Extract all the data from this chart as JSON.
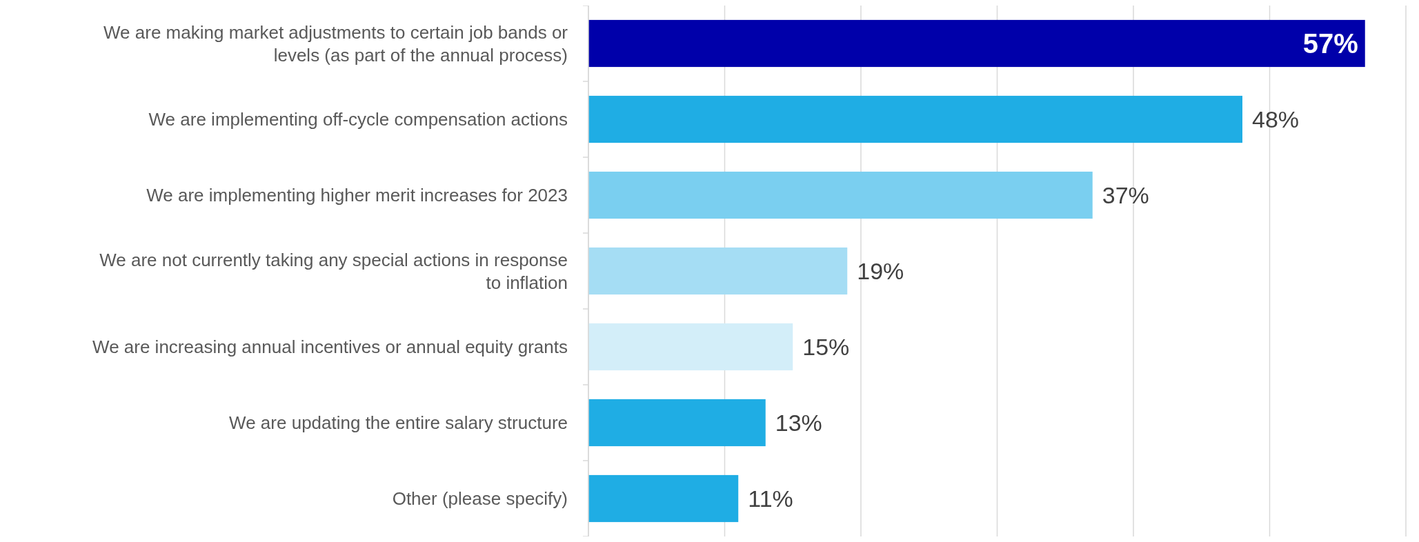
{
  "chart_data": {
    "type": "bar",
    "orientation": "horizontal",
    "categories": [
      "We are making market adjustments to certain job bands or levels (as part of the annual process)",
      "We are implementing off-cycle compensation actions",
      "We are implementing higher merit increases for 2023",
      "We are not currently taking any special actions in response to inflation",
      "We are increasing annual incentives or annual equity grants",
      "We are updating the entire salary structure",
      "Other (please specify)"
    ],
    "values": [
      57,
      48,
      37,
      19,
      15,
      13,
      11
    ],
    "colors": [
      "#0000aa",
      "#1fade4",
      "#7acff0",
      "#a5ddf4",
      "#d3eef9",
      "#1fade4",
      "#1fade4"
    ],
    "value_labels": [
      "57%",
      "48%",
      "37%",
      "19%",
      "15%",
      "13%",
      "11%"
    ],
    "xlim": [
      0,
      60
    ],
    "xticks": [
      {
        "value": 0,
        "label": null
      },
      {
        "value": 10,
        "label": null
      },
      {
        "value": 20,
        "label": null
      },
      {
        "value": 30,
        "label": null
      },
      {
        "value": 40,
        "label": null
      },
      {
        "value": 50,
        "label": null
      },
      {
        "value": 60,
        "label": null
      }
    ],
    "grid": "x",
    "tick_labels": "y"
  }
}
